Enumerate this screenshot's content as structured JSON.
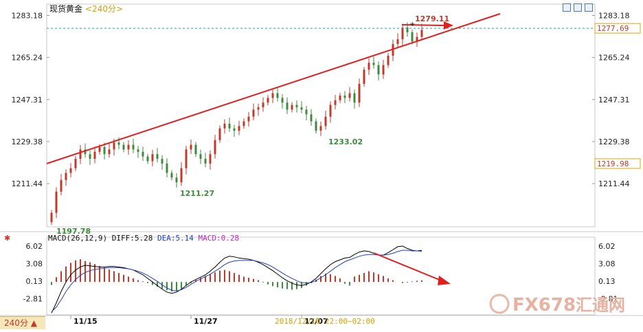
{
  "header": {
    "title": "现货黄金",
    "timeframe_tag": "<240分>"
  },
  "toolbar": {
    "buttons": [
      "chart-icon",
      "step-forward-icon",
      "zoom-icon"
    ]
  },
  "price_axis": {
    "ticks": [
      1283.18,
      1265.24,
      1247.31,
      1229.38,
      1211.44
    ]
  },
  "current_price_label": "1277.69",
  "ref_price_label": "1219.98",
  "annotations": {
    "high": "1279.11",
    "low1": "1197.78",
    "low2": "1211.27",
    "low3": "1233.02"
  },
  "macd": {
    "label": "MACD(26,12,9)",
    "diff": "DIFF:5.28",
    "dea": "DEA:5.14",
    "macd": "MACD:0.28",
    "ticks": [
      "6.02",
      "3.08",
      "0.13",
      "-2.81"
    ]
  },
  "x_axis": {
    "labels": [
      "11/15",
      "11/27",
      "12/07"
    ],
    "cursor_time": "2018/12/10  22:00~02:00"
  },
  "timeframe_badge": "240分",
  "watermark": {
    "brand": "FX678",
    "cn": "汇通网"
  },
  "colors": {
    "up": "#c0392b",
    "down": "#3d8b3d",
    "trend": "#e02020",
    "diff": "#000000",
    "dea": "#1f3fbf"
  },
  "chart_data": {
    "type": "candlestick",
    "title": "现货黄金",
    "ylim": [
      1193,
      1288
    ],
    "x_tick_labels": [
      "11/15",
      "11/27",
      "12/07"
    ],
    "x_tick_index": [
      4,
      29,
      52
    ],
    "close": [
      1199,
      1208,
      1213,
      1216,
      1218,
      1222,
      1226,
      1224,
      1222,
      1225,
      1227,
      1224,
      1226,
      1229,
      1228,
      1226,
      1228,
      1226,
      1225,
      1223,
      1221,
      1224,
      1222,
      1220,
      1216,
      1214,
      1212,
      1218,
      1226,
      1228,
      1224,
      1222,
      1220,
      1224,
      1230,
      1235,
      1237,
      1235,
      1234,
      1236,
      1238,
      1240,
      1243,
      1244,
      1246,
      1248,
      1250,
      1248,
      1246,
      1243,
      1245,
      1244,
      1243,
      1241,
      1238,
      1234,
      1236,
      1240,
      1245,
      1247,
      1249,
      1248,
      1250,
      1246,
      1254,
      1260,
      1263,
      1262,
      1258,
      1262,
      1266,
      1271,
      1273,
      1278,
      1276,
      1272,
      1274,
      1277
    ],
    "macd_ylim": [
      -5.5,
      7.5
    ],
    "macd_hist": [
      -0.5,
      0.8,
      1.8,
      2.6,
      3.2,
      3.6,
      3.8,
      3.5,
      3.3,
      3.0,
      2.7,
      2.4,
      2.1,
      1.8,
      1.5,
      1.2,
      0.9,
      0.6,
      0.3,
      0.1,
      -0.2,
      -0.5,
      -0.8,
      -1.1,
      -1.4,
      -1.6,
      -1.5,
      -1.1,
      -0.6,
      -0.2,
      0.3,
      0.7,
      1.0,
      1.3,
      1.6,
      1.9,
      2.0,
      1.8,
      1.5,
      1.2,
      0.9,
      0.7,
      0.5,
      0.3,
      -0.1,
      -0.4,
      -0.7,
      -0.9,
      -1.1,
      -1.2,
      -1.3,
      -1.2,
      -1.0,
      -0.6,
      -0.2,
      0.4,
      1.0,
      1.4,
      1.3,
      1.0,
      0.6,
      -0.3,
      -0.6,
      0.9,
      1.2,
      1.5,
      1.8,
      1.6,
      1.3,
      1.0,
      0.6,
      0.3,
      0.0,
      -0.2,
      -0.1,
      0.1,
      0.2,
      0.28
    ],
    "macd_diff": [
      -5.2,
      -3.5,
      -1.6,
      0.0,
      1.2,
      2.0,
      2.5,
      2.8,
      2.7,
      2.6,
      2.5,
      2.5,
      2.6,
      2.6,
      2.5,
      2.4,
      2.2,
      2.0,
      1.6,
      1.2,
      0.6,
      0.0,
      -0.6,
      -1.2,
      -1.7,
      -1.9,
      -1.7,
      -1.2,
      -0.6,
      0.0,
      0.4,
      0.8,
      1.2,
      1.8,
      2.5,
      3.3,
      4.0,
      4.3,
      4.2,
      4.0,
      3.9,
      3.8,
      3.6,
      3.3,
      2.9,
      2.4,
      1.9,
      1.3,
      0.7,
      0.2,
      -0.2,
      -0.5,
      -0.6,
      -0.4,
      0.0,
      0.6,
      1.4,
      2.2,
      2.9,
      3.4,
      3.7,
      4.0,
      4.1,
      4.6,
      5.0,
      5.2,
      5.1,
      4.8,
      4.5,
      4.5,
      4.9,
      5.4,
      5.9,
      6.0,
      5.6,
      5.3,
      5.2,
      5.28
    ],
    "macd_dea": [
      -5.0,
      -4.2,
      -3.0,
      -1.6,
      -0.5,
      0.4,
      1.1,
      1.6,
      1.9,
      2.1,
      2.2,
      2.3,
      2.4,
      2.4,
      2.4,
      2.3,
      2.2,
      2.0,
      1.8,
      1.5,
      1.1,
      0.6,
      0.1,
      -0.5,
      -1.0,
      -1.4,
      -1.5,
      -1.3,
      -0.9,
      -0.4,
      0.1,
      0.5,
      0.9,
      1.3,
      1.8,
      2.3,
      2.9,
      3.3,
      3.5,
      3.6,
      3.6,
      3.6,
      3.6,
      3.4,
      3.2,
      2.9,
      2.5,
      2.0,
      1.5,
      1.0,
      0.6,
      0.2,
      -0.1,
      -0.2,
      -0.1,
      0.2,
      0.7,
      1.2,
      1.8,
      2.4,
      2.9,
      3.4,
      3.7,
      4.0,
      4.3,
      4.5,
      4.6,
      4.6,
      4.5,
      4.5,
      4.6,
      4.8,
      5.1,
      5.3,
      5.3,
      5.2,
      5.2,
      5.14
    ]
  }
}
